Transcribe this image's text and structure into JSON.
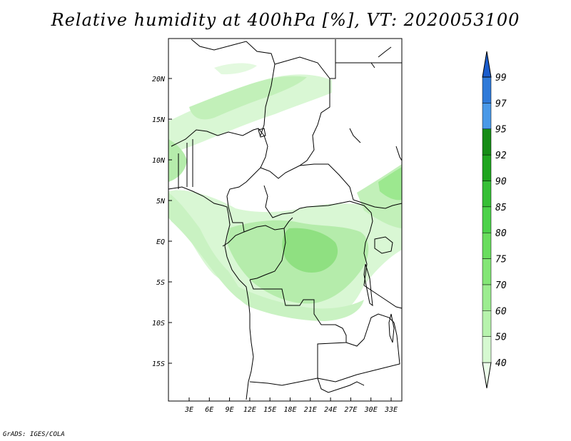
{
  "title": "Relative humidity at 400hPa [%], VT: 2020053100",
  "credit": "GrADS: IGES/COLA",
  "map": {
    "lat_ticks": [
      "20N",
      "15N",
      "10N",
      "5N",
      "EQ",
      "5S",
      "10S",
      "15S"
    ],
    "lon_ticks": [
      "3E",
      "6E",
      "9E",
      "12E",
      "15E",
      "18E",
      "21E",
      "24E",
      "27E",
      "30E",
      "33E"
    ]
  },
  "colorbar": {
    "levels": [
      "40",
      "50",
      "60",
      "70",
      "75",
      "80",
      "85",
      "90",
      "92",
      "95",
      "97",
      "99"
    ],
    "colors": [
      "#ecfdea",
      "#d6f9d1",
      "#b7f3ad",
      "#9ced90",
      "#83e676",
      "#69dd5e",
      "#4cd24a",
      "#36bf36",
      "#1fa51f",
      "#158c15",
      "#4a99e8",
      "#2f7ad9",
      "#1a5ccc"
    ]
  },
  "colors": {
    "border": "#000000",
    "rh_light": "#d9f7d4",
    "rh_mid": "#b5ecab",
    "rh_strong": "#8fe081"
  }
}
